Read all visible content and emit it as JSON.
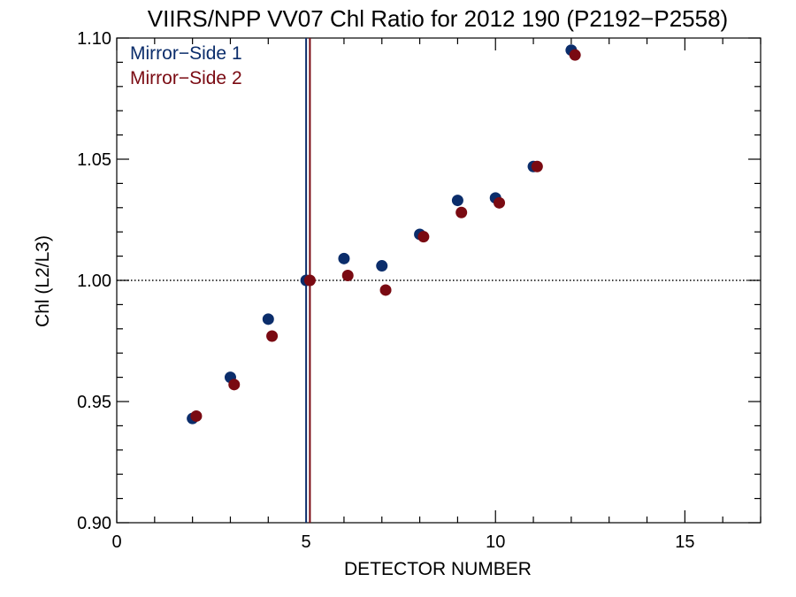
{
  "chart_data": {
    "type": "scatter",
    "title": "VIIRS/NPP VV07 Chl Ratio for 2012 190 (P2192−P2558)",
    "xlabel": "DETECTOR NUMBER",
    "ylabel": "Chl (L2/L3)",
    "xlim": [
      0,
      17
    ],
    "ylim": [
      0.9,
      1.1
    ],
    "xticks": [
      0,
      5,
      10,
      15
    ],
    "xtick_labels": [
      "0",
      "5",
      "10",
      "15"
    ],
    "yticks": [
      0.9,
      0.95,
      1.0,
      1.05,
      1.1
    ],
    "ytick_labels": [
      "0.90",
      "0.95",
      "1.00",
      "1.05",
      "1.10"
    ],
    "reference_line": {
      "y": 1.0,
      "style": "dotted"
    },
    "vertical_lines": [
      {
        "x": 5.0,
        "color": "#0b2d6b"
      },
      {
        "x": 5.1,
        "color": "#7a0a12"
      }
    ],
    "legend_position": "top-left",
    "grid": false,
    "series": [
      {
        "name": "Mirror−Side 1",
        "color": "#0b2d6b",
        "x": [
          2,
          3,
          4,
          5,
          6,
          7,
          8,
          9,
          10,
          11,
          12
        ],
        "y": [
          0.943,
          0.96,
          0.984,
          1.0,
          1.009,
          1.006,
          1.019,
          1.033,
          1.034,
          1.047,
          1.095
        ]
      },
      {
        "name": "Mirror−Side 2",
        "color": "#7a0a12",
        "x": [
          2.1,
          3.1,
          4.1,
          5.1,
          6.1,
          7.1,
          8.1,
          9.1,
          10.1,
          11.1,
          12.1
        ],
        "y": [
          0.944,
          0.957,
          0.977,
          1.0,
          1.002,
          0.996,
          1.018,
          1.028,
          1.032,
          1.047,
          1.093
        ]
      }
    ]
  }
}
